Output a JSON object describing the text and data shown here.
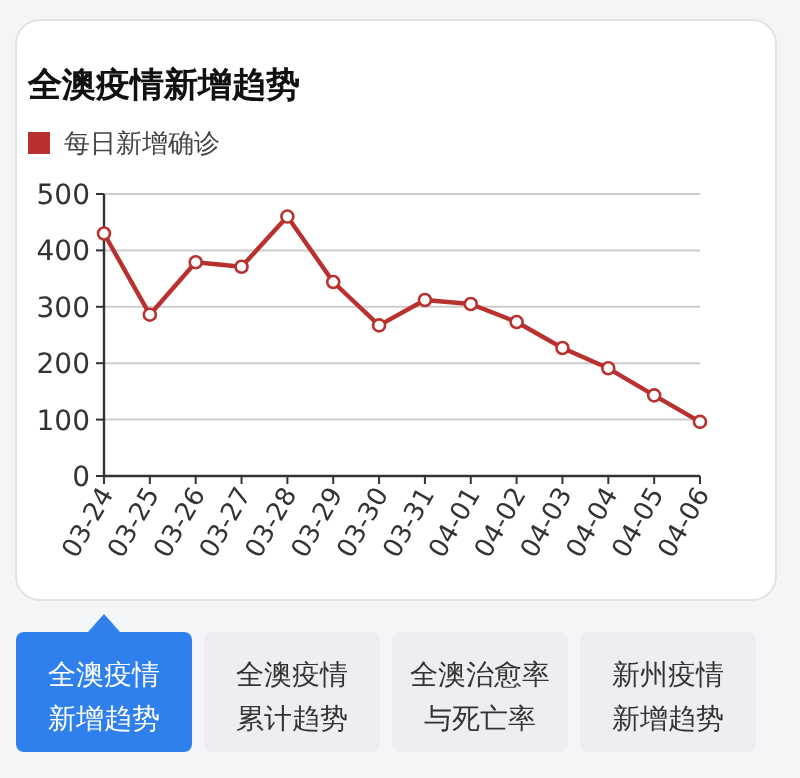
{
  "chart_data": {
    "type": "line",
    "title": "全澳疫情新增趋势",
    "categories": [
      "03-24",
      "03-25",
      "03-26",
      "03-27",
      "03-28",
      "03-29",
      "03-30",
      "03-31",
      "04-01",
      "04-02",
      "04-03",
      "04-04",
      "04-05",
      "04-06"
    ],
    "series": [
      {
        "name": "每日新增确诊",
        "color": "#b8312f",
        "values": [
          430,
          286,
          379,
          371,
          460,
          344,
          267,
          312,
          305,
          273,
          227,
          191,
          143,
          96
        ]
      }
    ],
    "ylim": [
      0,
      500
    ],
    "yticks": [
      0,
      100,
      200,
      300,
      400,
      500
    ],
    "grid": "y",
    "legend": "top left",
    "marker": "circle",
    "line_style": "solid",
    "annotations": [
      "全澳疫情新增趋势",
      "全澳疫情累计趋势",
      "全澳治愈率与死亡率",
      "新州疫情新增趋势"
    ]
  }
}
